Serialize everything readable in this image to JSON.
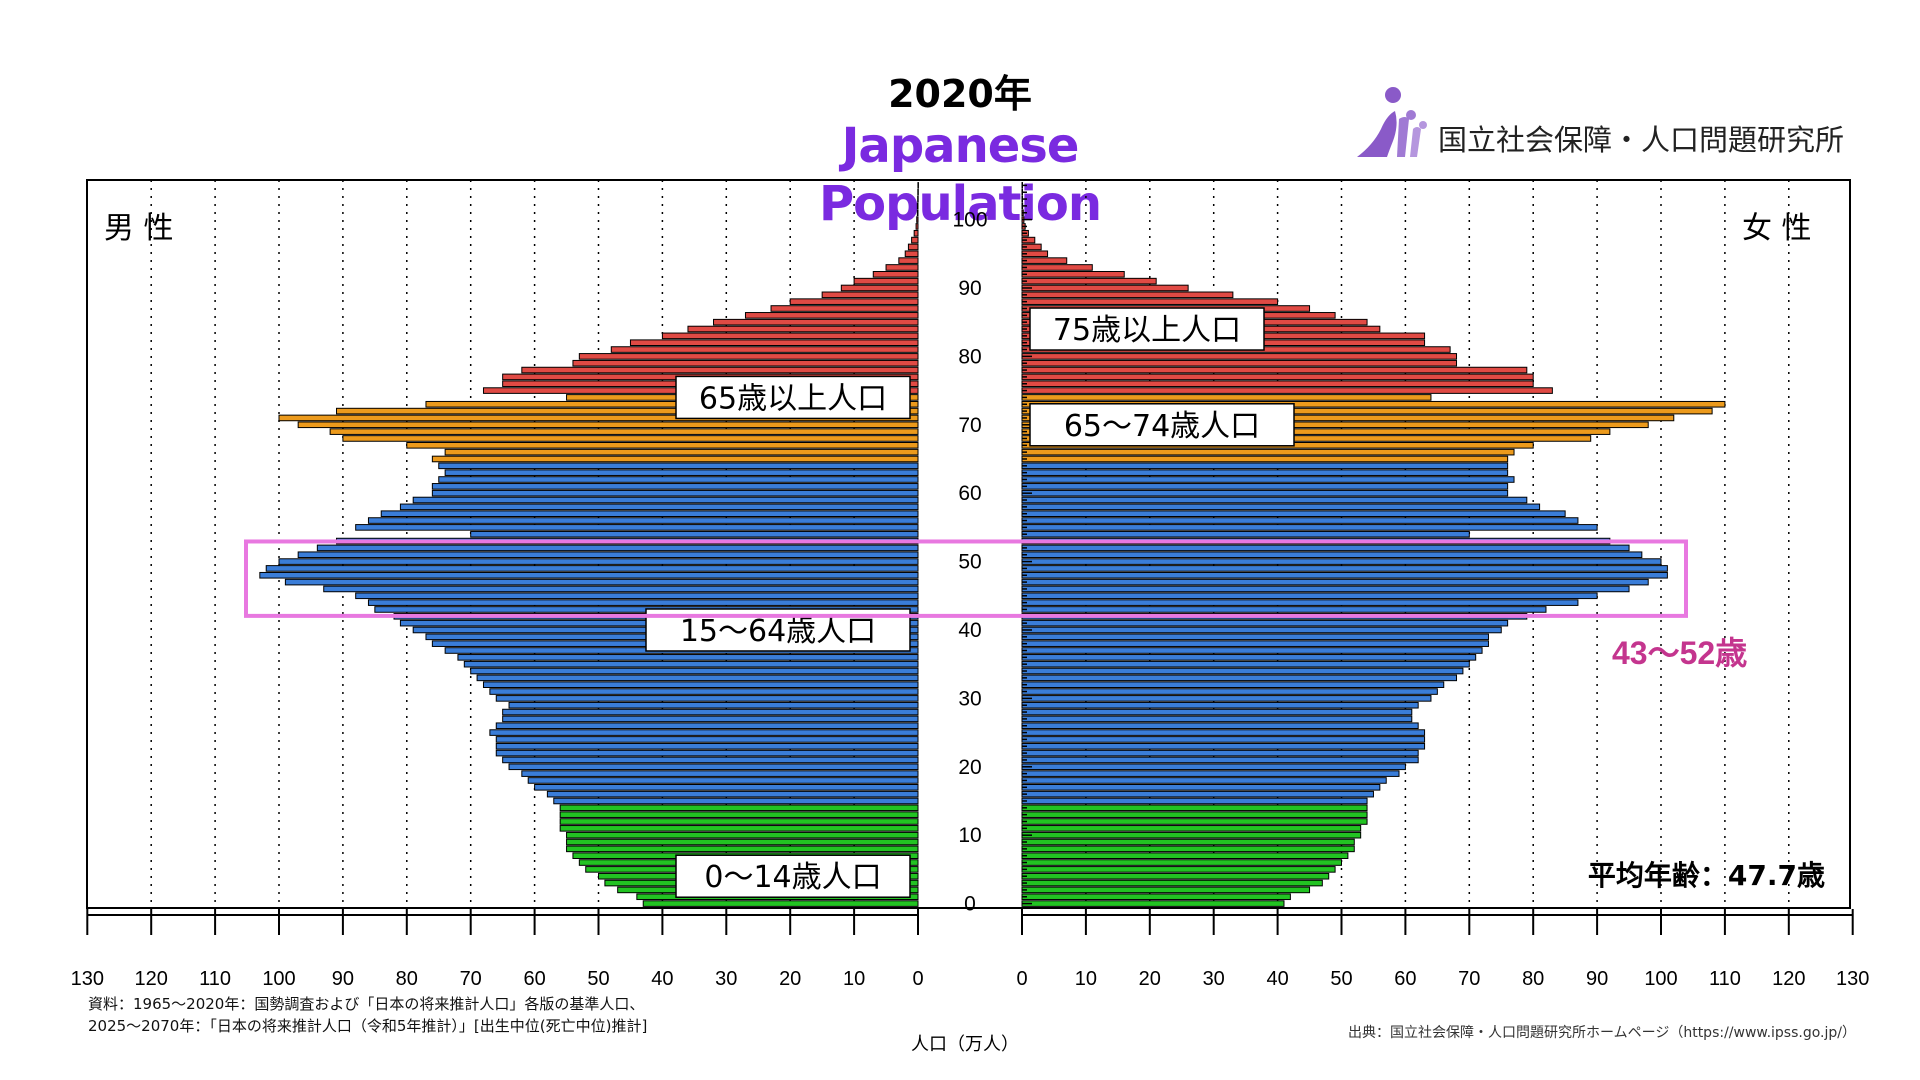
{
  "title": {
    "year": "2020年",
    "english": "Japanese Population",
    "colors": {
      "year": "#000000",
      "english": "#7a2ae0"
    }
  },
  "logo": {
    "icon": "ipss-logo-figure-icon",
    "org_name": "国立社会保障・人口問題研究所",
    "color": "#8a5ac8"
  },
  "footer": {
    "source_left_1": "資料：1965～2020年：国勢調査および「日本の将来推計人口」各版の基準人口、",
    "source_left_2": "2025～2070年：「日本の将来推計人口（令和5年推計）」[出生中位(死亡中位)推計]",
    "source_right": "出典：国立社会保障・人口問題研究所ホームページ（https://www.ipss.go.jp/）"
  },
  "chart_data": {
    "type": "bar",
    "orientation": "horizontal-pyramid",
    "title": "2020年",
    "subtitle": "Japanese Population",
    "xlabel": "人口（万人）",
    "ylabel": "",
    "xlim": [
      0,
      130
    ],
    "x_ticks": [
      0,
      10,
      20,
      30,
      40,
      50,
      60,
      70,
      80,
      90,
      100,
      110,
      120,
      130
    ],
    "age_ticks": [
      0,
      10,
      20,
      30,
      40,
      50,
      60,
      70,
      80,
      90,
      100
    ],
    "ylim": [
      0,
      105
    ],
    "grid": "vertical dotted lines every 10",
    "side_labels": {
      "male": "男 性",
      "female": "女 性"
    },
    "age_groups": [
      {
        "name": "0～14歳人口",
        "from": 0,
        "to": 14,
        "color": "#22c322"
      },
      {
        "name": "15～64歳人口",
        "from": 15,
        "to": 64,
        "color": "#3a7dd8"
      },
      {
        "name": "65～74歳人口",
        "from": 65,
        "to": 74,
        "color": "#ec9a1c"
      },
      {
        "name": "75歳以上人口",
        "from": 75,
        "to": 105,
        "color": "#e04a44"
      }
    ],
    "group_labels": [
      {
        "text": "65歳以上人口",
        "side": "male",
        "age": 74
      },
      {
        "text": "15～64歳人口",
        "side": "male",
        "age": 40
      },
      {
        "text": "0～14歳人口",
        "side": "male",
        "age": 4
      },
      {
        "text": "75歳以上人口",
        "side": "female",
        "age": 84
      },
      {
        "text": "65～74歳人口",
        "side": "female",
        "age": 70
      }
    ],
    "highlight": {
      "label": "43～52歳",
      "from": 43,
      "to": 52,
      "color": "#e878e0",
      "label_color": "#c4358e"
    },
    "annotation": "平均年齢：47.7歳",
    "series": [
      {
        "name": "男性",
        "values": [
          43,
          44,
          47,
          49,
          50,
          52,
          53,
          54,
          55,
          55,
          55,
          56,
          56,
          56,
          56,
          57,
          58,
          60,
          61,
          62,
          64,
          65,
          66,
          66,
          66,
          67,
          66,
          65,
          65,
          64,
          66,
          67,
          68,
          69,
          70,
          71,
          72,
          74,
          76,
          77,
          79,
          81,
          82,
          85,
          86,
          88,
          93,
          99,
          103,
          102,
          100,
          97,
          94,
          91,
          70,
          88,
          86,
          84,
          81,
          79,
          76,
          76,
          75,
          74,
          75,
          76,
          74,
          80,
          90,
          92,
          97,
          100,
          91,
          77,
          55,
          68,
          65,
          65,
          62,
          54,
          53,
          48,
          45,
          40,
          36,
          32,
          27,
          23,
          20,
          15,
          12,
          10,
          7,
          5,
          3,
          2,
          1.5,
          1,
          0.6,
          0.3,
          0.2,
          0.1,
          0.1,
          0.05,
          0.03,
          0.01
        ]
      },
      {
        "name": "女性",
        "values": [
          41,
          42,
          45,
          47,
          48,
          49,
          50,
          51,
          52,
          52,
          53,
          53,
          54,
          54,
          54,
          54,
          55,
          56,
          57,
          59,
          60,
          62,
          62,
          63,
          63,
          63,
          62,
          61,
          61,
          62,
          64,
          65,
          66,
          68,
          69,
          70,
          71,
          72,
          73,
          73,
          75,
          76,
          79,
          82,
          87,
          90,
          95,
          98,
          101,
          101,
          100,
          97,
          95,
          92,
          70,
          90,
          87,
          85,
          81,
          79,
          76,
          76,
          77,
          76,
          76,
          76,
          77,
          80,
          89,
          92,
          98,
          102,
          108,
          110,
          64,
          83,
          80,
          80,
          79,
          68,
          68,
          67,
          63,
          63,
          56,
          54,
          49,
          45,
          40,
          33,
          26,
          21,
          16,
          11,
          7,
          4,
          3,
          2,
          1,
          0.5,
          0.3,
          0.2,
          0.1,
          0.05,
          0.03,
          0.01
        ]
      }
    ]
  }
}
